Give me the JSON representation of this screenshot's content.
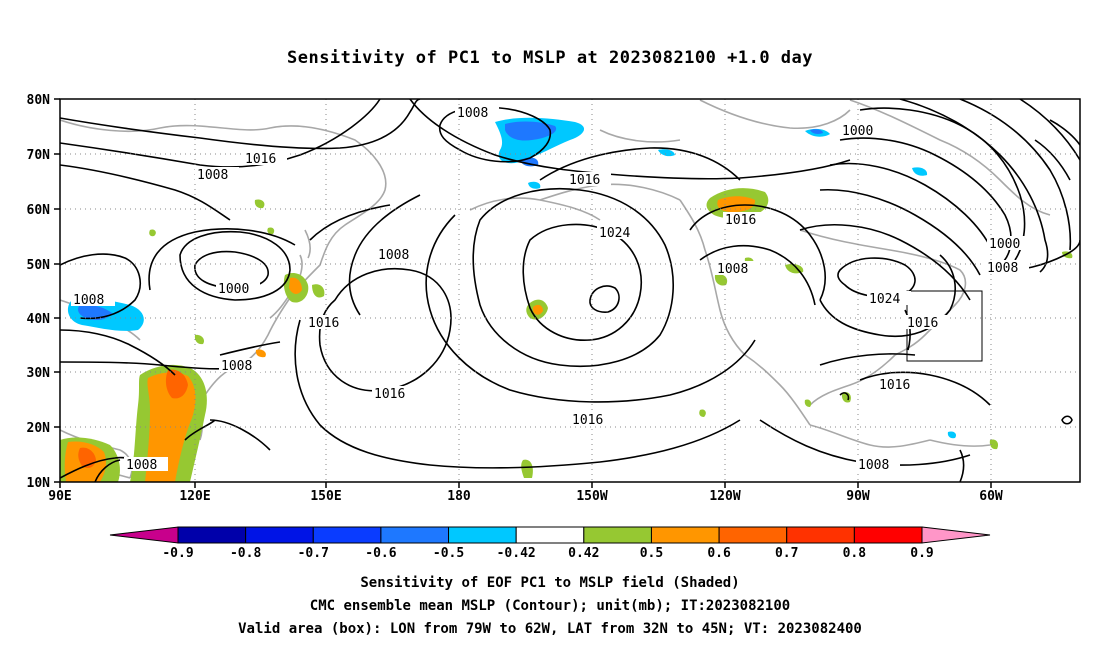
{
  "title": "Sensitivity of PC1 to MSLP at 2023082100 +1.0 day",
  "lat_ticks": [
    "80N",
    "70N",
    "60N",
    "50N",
    "40N",
    "30N",
    "20N",
    "10N"
  ],
  "lon_ticks": [
    "90E",
    "120E",
    "150E",
    "180",
    "150W",
    "120W",
    "90W",
    "60W"
  ],
  "contour_labels": [
    "1008",
    "1000",
    "1016",
    "1008",
    "1008",
    "1000",
    "1008",
    "1016",
    "1008",
    "1016",
    "1016",
    "1008",
    "1024",
    "1016",
    "1016",
    "1008",
    "1000",
    "1024",
    "1016",
    "1016",
    "1008",
    "1008"
  ],
  "colorbar": {
    "labels": [
      "-0.9",
      "-0.8",
      "-0.7",
      "-0.6",
      "-0.5",
      "-0.42",
      "0.42",
      "0.5",
      "0.6",
      "0.7",
      "0.8",
      "0.9"
    ],
    "colors": [
      "#c8008c",
      "#0000aa",
      "#0014e6",
      "#0a3cff",
      "#1e78ff",
      "#00c8ff",
      "#ffffff",
      "#96c832",
      "#ff9600",
      "#ff6400",
      "#ff3200",
      "#ff0000",
      "#ff96c8"
    ]
  },
  "captions": [
    "Sensitivity of EOF PC1 to MSLP field (Shaded)",
    "CMC ensemble mean MSLP (Contour); unit(mb); IT:2023082100",
    "Valid area (box): LON from 79W to 62W, LAT from 32N to 45N; VT: 2023082400"
  ]
}
